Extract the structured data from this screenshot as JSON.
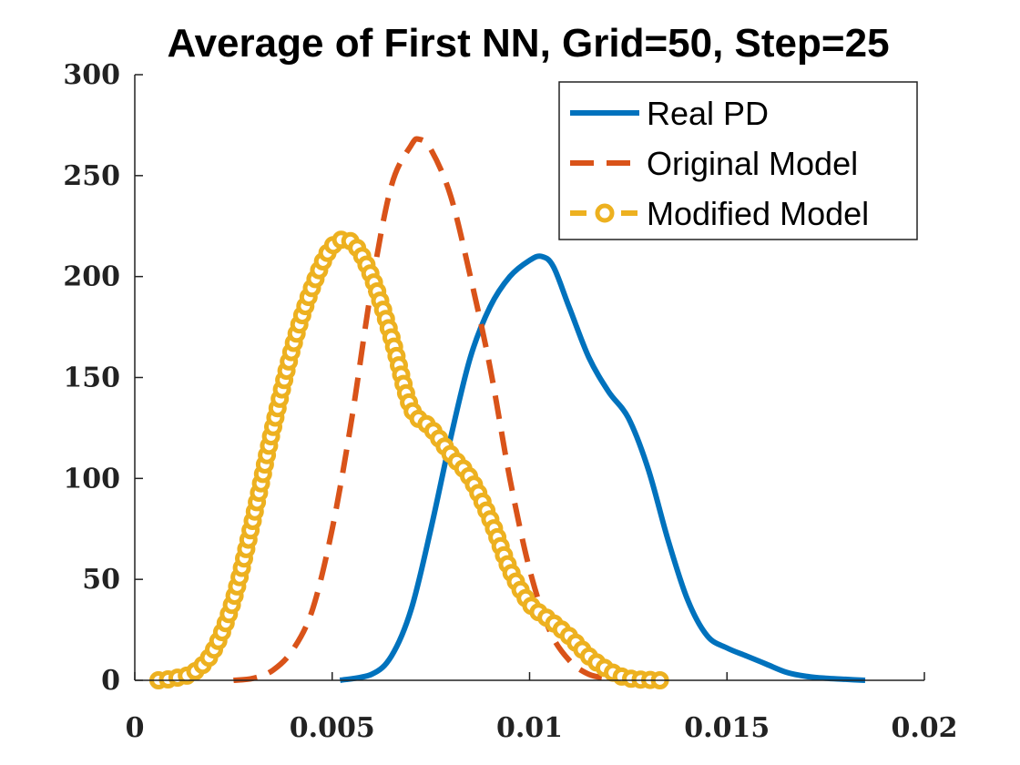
{
  "chart_data": {
    "type": "line",
    "title": "Average of First NN, Grid=50, Step=25",
    "xlabel": "",
    "ylabel": "",
    "xlim": [
      0,
      0.02
    ],
    "ylim": [
      0,
      300
    ],
    "xticks": [
      0,
      0.005,
      0.01,
      0.015,
      0.02
    ],
    "xtick_labels": [
      "0",
      "0.005",
      "0.01",
      "0.015",
      "0.02"
    ],
    "yticks": [
      0,
      50,
      100,
      150,
      200,
      250,
      300
    ],
    "ytick_labels": [
      "0",
      "50",
      "100",
      "150",
      "200",
      "250",
      "300"
    ],
    "grid": false,
    "legend": "top-right",
    "series": [
      {
        "name": "Real PD",
        "color": "#0072BD",
        "style": "solid",
        "x": [
          0.0052,
          0.006,
          0.0065,
          0.007,
          0.0075,
          0.008,
          0.0085,
          0.009,
          0.0095,
          0.01,
          0.0103,
          0.0106,
          0.011,
          0.0115,
          0.012,
          0.0125,
          0.013,
          0.0135,
          0.014,
          0.0145,
          0.015,
          0.0155,
          0.016,
          0.0165,
          0.017,
          0.0175,
          0.018,
          0.0185
        ],
        "y": [
          0,
          3,
          12,
          35,
          75,
          120,
          160,
          185,
          200,
          208,
          210,
          205,
          185,
          160,
          143,
          130,
          105,
          70,
          40,
          22,
          16,
          12,
          8,
          4,
          2,
          1,
          0.5,
          0
        ]
      },
      {
        "name": "Original Model",
        "color": "#D95319",
        "style": "dashed",
        "x": [
          0.0025,
          0.003,
          0.0035,
          0.004,
          0.0045,
          0.005,
          0.0055,
          0.006,
          0.0065,
          0.007,
          0.0072,
          0.0075,
          0.008,
          0.0085,
          0.009,
          0.0095,
          0.01,
          0.0105,
          0.011,
          0.0115,
          0.012,
          0.0125
        ],
        "y": [
          0,
          1,
          5,
          15,
          35,
          75,
          130,
          195,
          245,
          265,
          268,
          263,
          240,
          200,
          155,
          100,
          55,
          25,
          10,
          3,
          1,
          0
        ]
      },
      {
        "name": "Modified Model",
        "color": "#EDB120",
        "style": "dashed-circles",
        "x": [
          0.0006,
          0.001,
          0.0015,
          0.002,
          0.0025,
          0.003,
          0.0035,
          0.004,
          0.0045,
          0.005,
          0.0055,
          0.006,
          0.0065,
          0.007,
          0.0075,
          0.008,
          0.0085,
          0.009,
          0.0095,
          0.01,
          0.0105,
          0.011,
          0.0115,
          0.012,
          0.0125,
          0.0133
        ],
        "y": [
          0,
          1,
          4,
          15,
          40,
          80,
          125,
          165,
          195,
          215,
          217,
          200,
          170,
          135,
          125,
          112,
          100,
          80,
          55,
          38,
          30,
          22,
          12,
          5,
          1,
          0
        ]
      }
    ]
  }
}
